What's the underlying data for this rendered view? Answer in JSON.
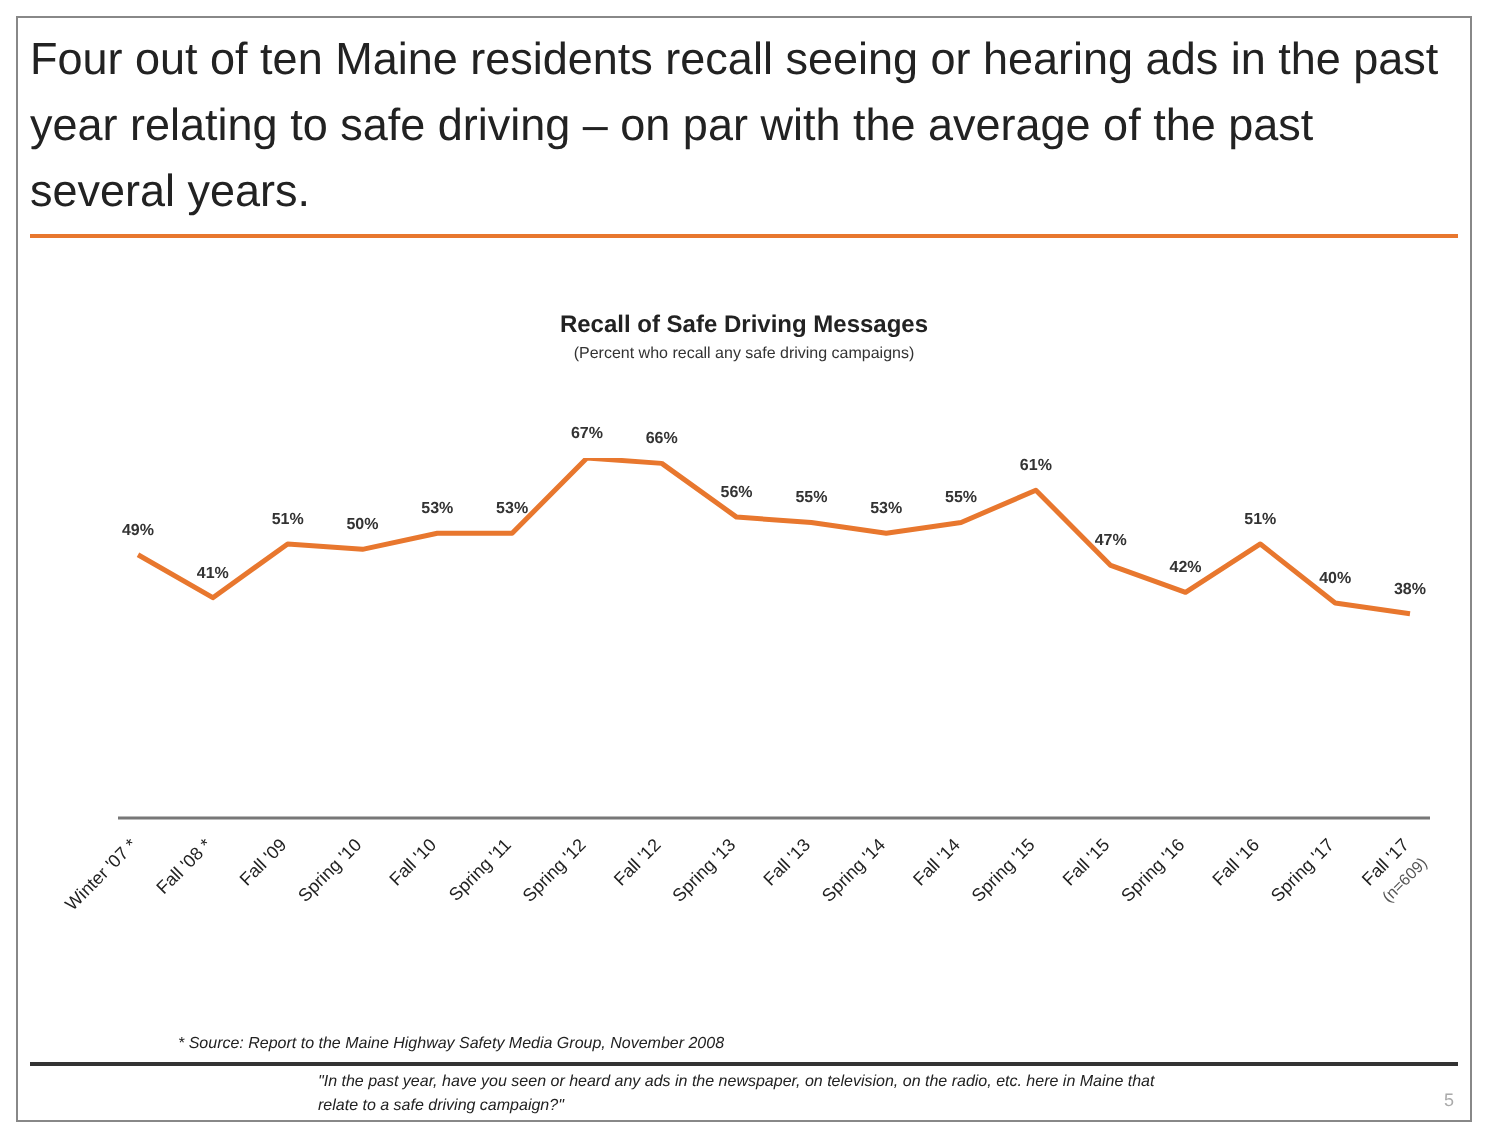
{
  "chart_data": {
    "type": "line",
    "title": "Four out of ten Maine residents recall seeing or hearing ads in the past year relating to safe driving – on par with the average of the past several years.",
    "subtitle": "Recall of Safe Driving Messages",
    "annotations": [
      "(Percent who recall any safe driving campaigns)",
      "* Source: Report to the Maine Highway Safety Media Group, November 2008",
      "\"In the past year, have you seen or heard any ads in the newspaper, on television, on the radio, etc. here in Maine that relate to a safe driving campaign?\"",
      "5"
    ],
    "categories": [
      "Winter '07 *",
      "Fall '08 *",
      "Fall '09",
      "Spring '10",
      "Fall '10",
      "Spring '11",
      "Spring '12",
      "Fall '12",
      "Spring '13",
      "Fall '13",
      "Spring '14",
      "Fall '14",
      "Spring '15",
      "Fall '15",
      "Spring '16",
      "Fall '16",
      "Spring '17",
      "Fall '17\n(n=609)"
    ],
    "series": [
      {
        "color": "#e8772e",
        "values": [
          49,
          41,
          51,
          50,
          53,
          53,
          67,
          66,
          56,
          55,
          53,
          55,
          61,
          47,
          42,
          51,
          40,
          38
        ],
        "value_labels": [
          "49%",
          "41%",
          "51%",
          "50%",
          "53%",
          "53%",
          "67%",
          "66%",
          "56%",
          "55%",
          "53%",
          "55%",
          "61%",
          "47%",
          "42%",
          "51%",
          "40%",
          "38%"
        ]
      }
    ],
    "marker": "none",
    "tick_labels": "x"
  }
}
